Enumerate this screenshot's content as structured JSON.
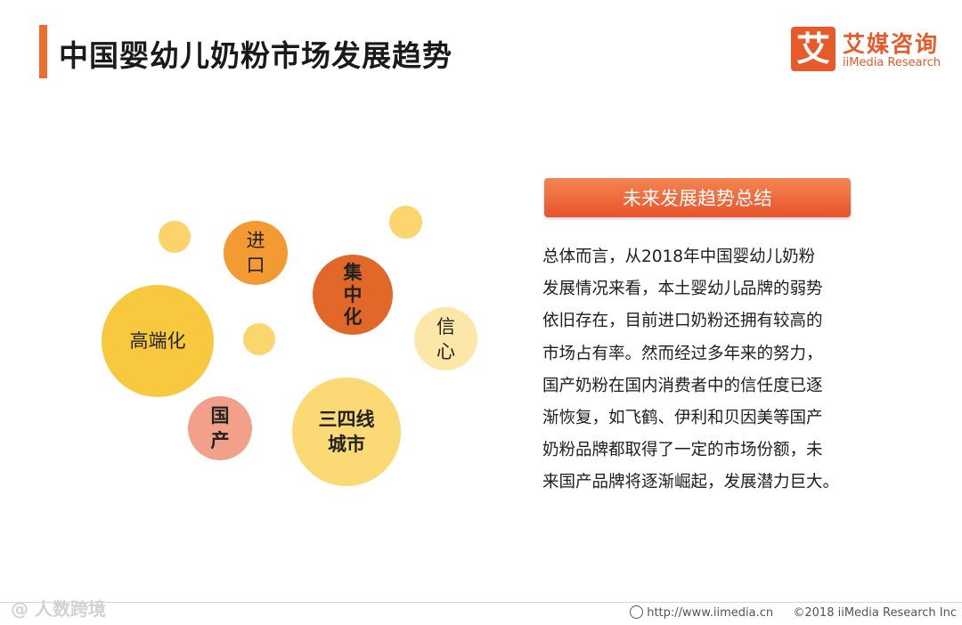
{
  "header": {
    "title": "中国婴幼儿奶粉市场发展趋势"
  },
  "logo": {
    "mark": "艾",
    "name_cn": "艾媒咨询",
    "name_en": "iiMedia Research"
  },
  "bubbles": [
    {
      "line1": "高端化",
      "line2": ""
    },
    {
      "line1": "进",
      "line2": "口"
    },
    {
      "line1": "集",
      "line2": "中",
      "line3": "化"
    },
    {
      "line1": "信",
      "line2": "心"
    },
    {
      "line1": "国",
      "line2": "产"
    },
    {
      "line1": "三四线",
      "line2": "城市"
    }
  ],
  "summary": {
    "header": "未来发展趋势总结",
    "lines": [
      "总体而言，从2018年中国婴幼儿奶粉",
      "发展情况来看，本土婴幼儿品牌的弱势",
      "依旧存在，目前进口奶粉还拥有较高的",
      "市场占有率。然而经过多年来的努力，",
      "国产奶粉在国内消费者中的信任度已逐",
      "渐恢复，如飞鹤、伊利和贝因美等国产",
      "奶粉品牌都取得了一定的市场份额，未",
      "来国产品牌将逐渐崛起，发展潜力巨大。"
    ]
  },
  "footer": {
    "watermark": "@ 人数跨境",
    "url": "http://www.iimedia.cn",
    "copyright": "©2018  iiMedia Research Inc"
  },
  "colors": {
    "accent": "#ef6c2f",
    "bubble_gold": "#f8c93e",
    "bubble_light": "#fbd975",
    "bubble_orange": "#f39a32",
    "bubble_deep": "#e2682a",
    "bubble_cream": "#fde7a8",
    "bubble_pink": "#f3a08a"
  }
}
